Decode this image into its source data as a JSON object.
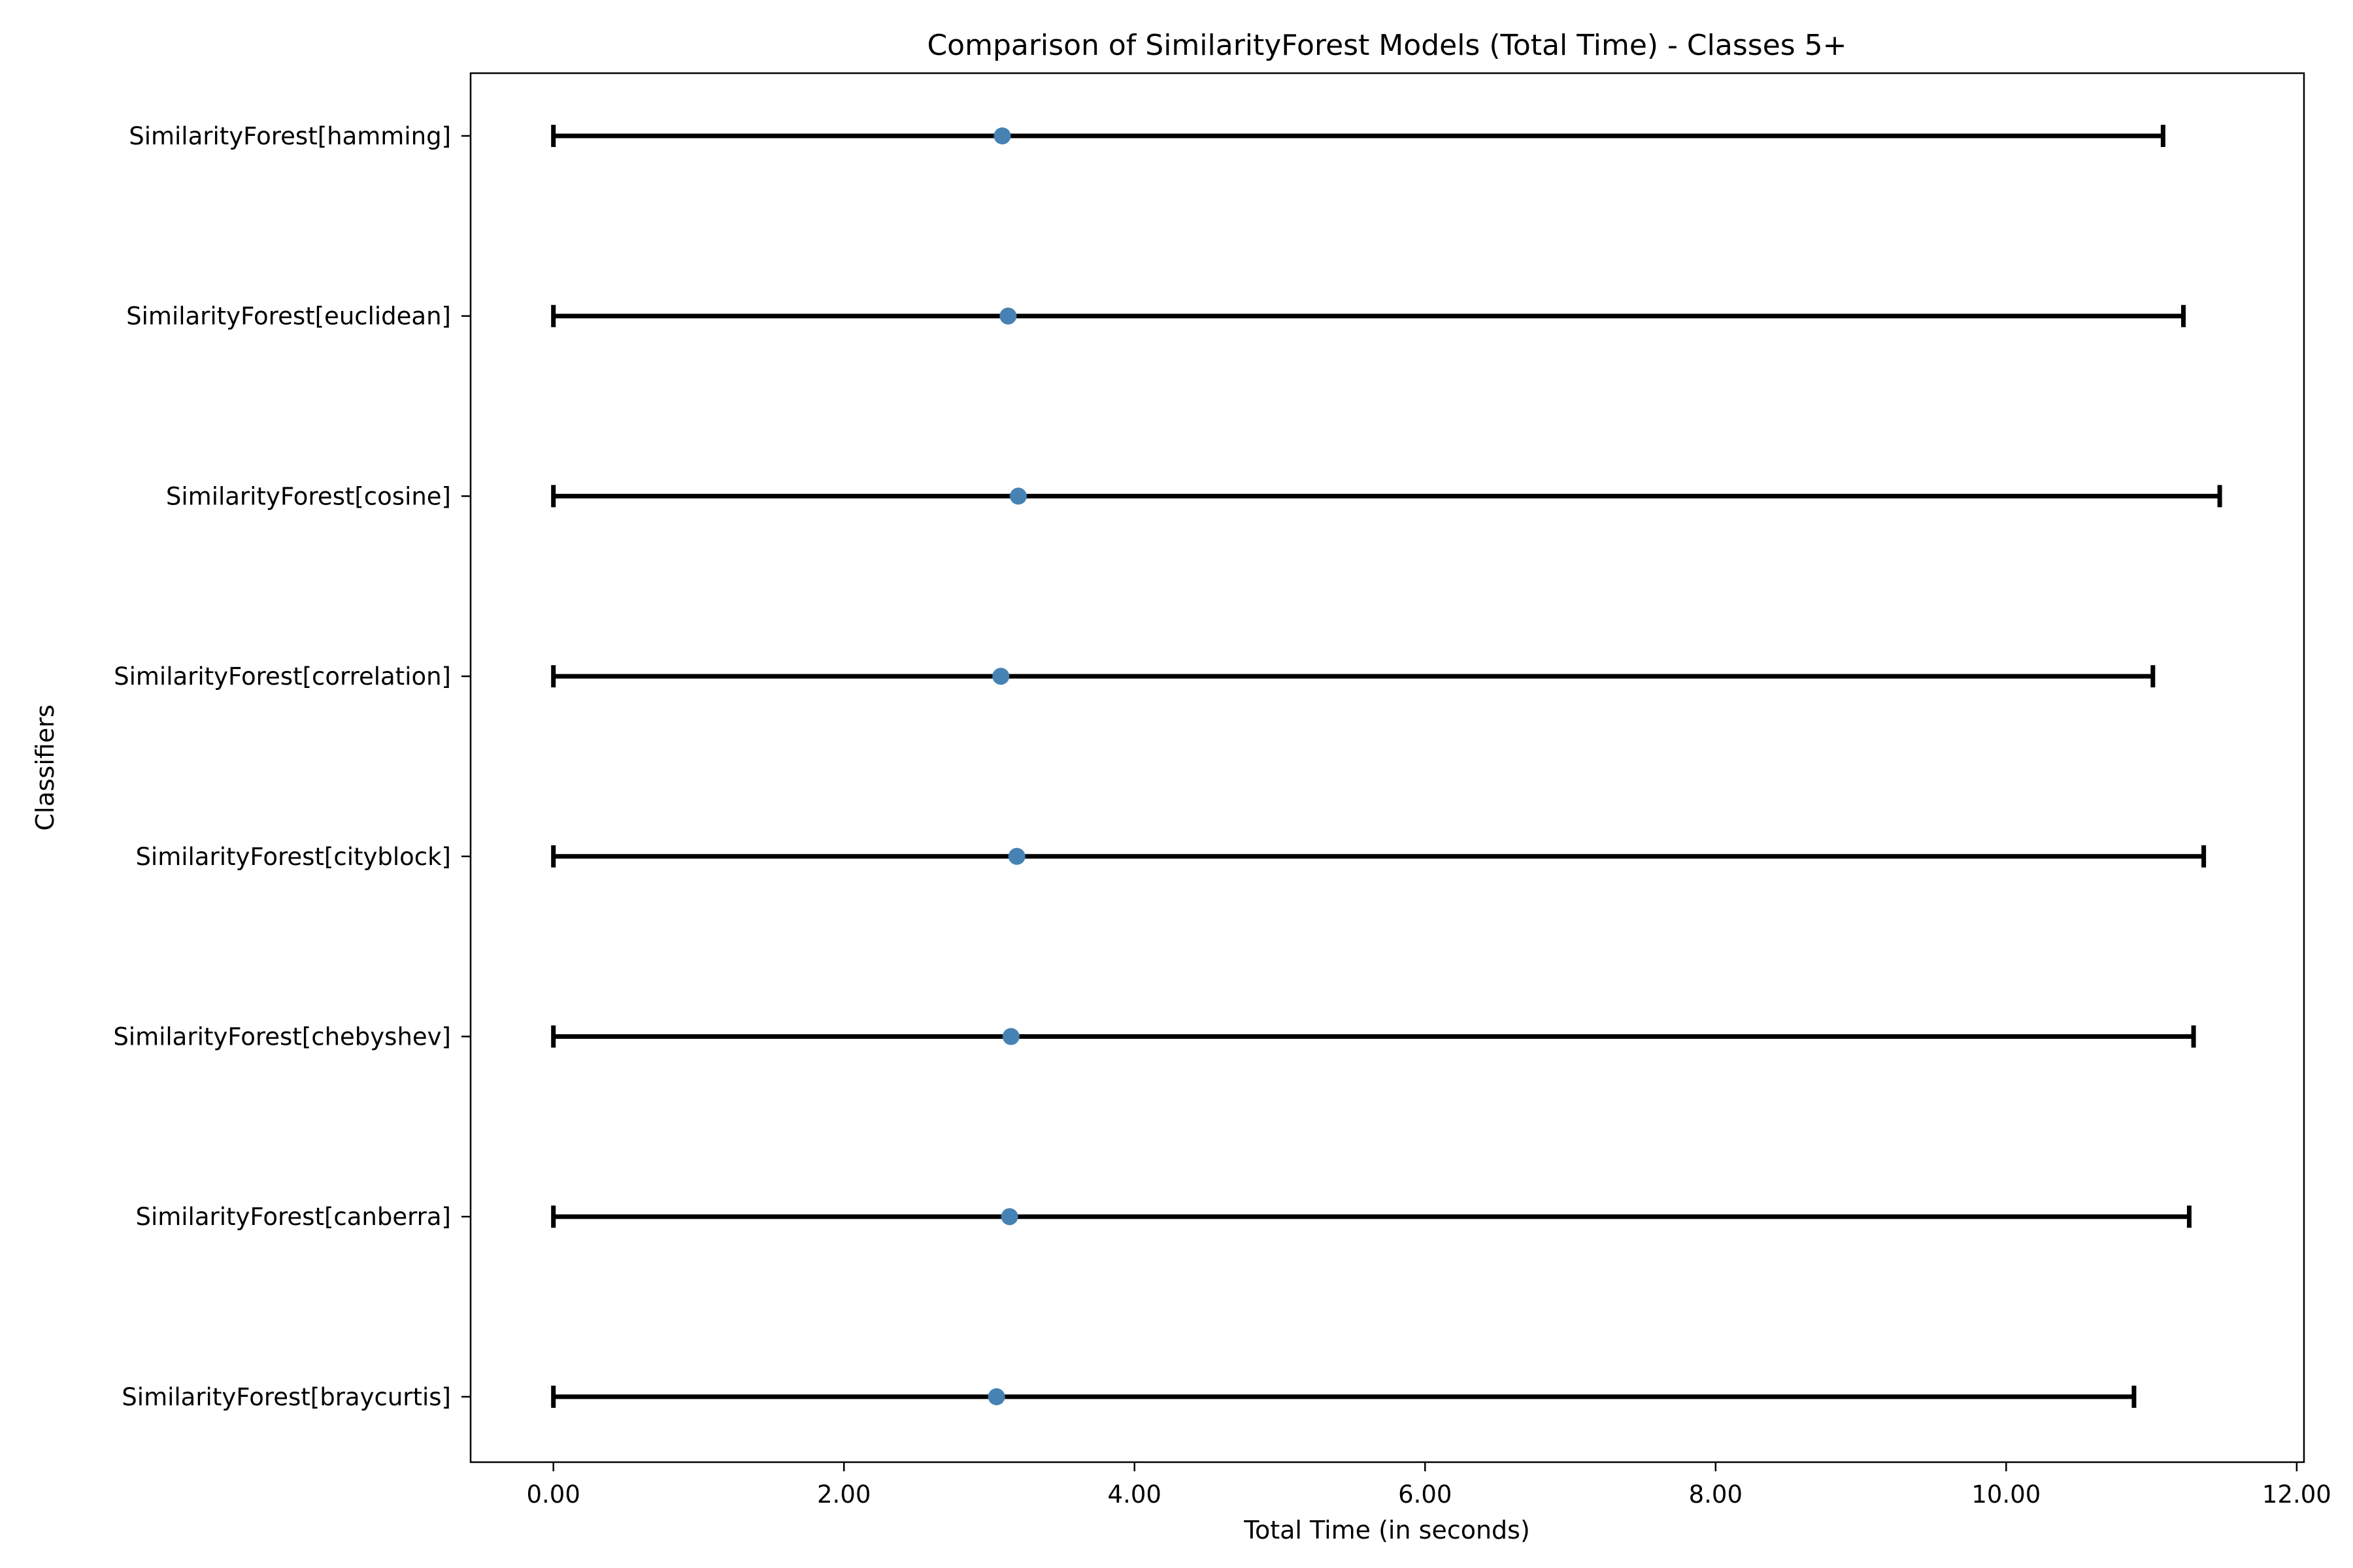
{
  "chart_data": {
    "type": "errorbar",
    "title": "Comparison of SimilarityForest Models (Total Time) - Classes 5+",
    "xlabel": "Total Time (in seconds)",
    "ylabel": "Classifiers",
    "xlim": [
      -0.57,
      12.05
    ],
    "x_ticks": [
      "0.00",
      "2.00",
      "4.00",
      "6.00",
      "8.00",
      "10.00",
      "12.00"
    ],
    "x_tick_values": [
      0,
      2,
      4,
      6,
      8,
      10,
      12
    ],
    "grid": false,
    "marker_color": "#4682b4",
    "errorbar_color": "#000000",
    "categories": [
      "SimilarityForest[hamming]",
      "SimilarityForest[euclidean]",
      "SimilarityForest[cosine]",
      "SimilarityForest[correlation]",
      "SimilarityForest[cityblock]",
      "SimilarityForest[chebyshev]",
      "SimilarityForest[canberra]",
      "SimilarityForest[braycurtis]"
    ],
    "points": [
      {
        "value": 3.09,
        "lower": 0.0,
        "upper": 11.08
      },
      {
        "value": 3.13,
        "lower": 0.0,
        "upper": 11.22
      },
      {
        "value": 3.2,
        "lower": 0.0,
        "upper": 11.47
      },
      {
        "value": 3.08,
        "lower": 0.0,
        "upper": 11.01
      },
      {
        "value": 3.19,
        "lower": 0.0,
        "upper": 11.36
      },
      {
        "value": 3.15,
        "lower": 0.0,
        "upper": 11.29
      },
      {
        "value": 3.14,
        "lower": 0.0,
        "upper": 11.26
      },
      {
        "value": 3.05,
        "lower": 0.0,
        "upper": 10.88
      }
    ]
  }
}
